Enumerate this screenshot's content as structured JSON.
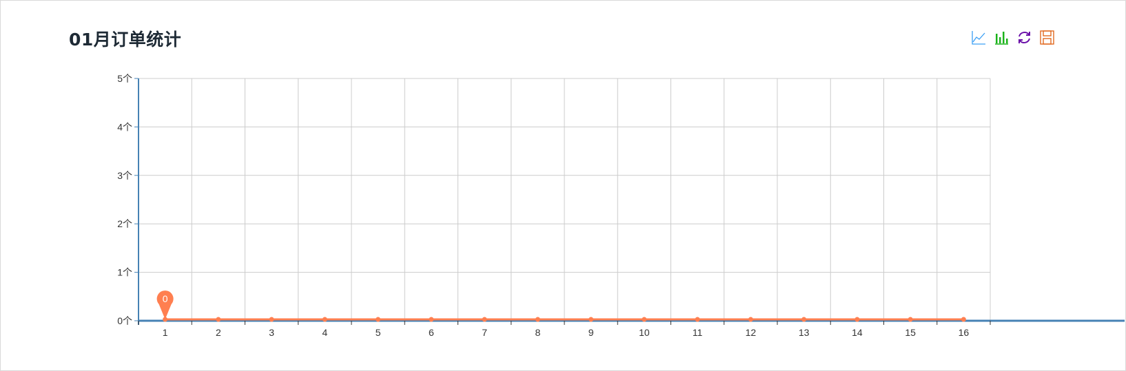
{
  "title": "01月订单统计",
  "toolbox": [
    {
      "name": "line-chart-icon",
      "color": "#3a9ff5"
    },
    {
      "name": "bar-chart-icon",
      "color": "#1bb31b"
    },
    {
      "name": "refresh-icon",
      "color": "#6a0fa8"
    },
    {
      "name": "save-icon",
      "color": "#e2691f"
    }
  ],
  "colors": {
    "line": "#ff7f50",
    "axis": "#4682b4",
    "grid": "#cccccc"
  },
  "chart_data": {
    "type": "line",
    "title": "01月订单统计",
    "categories": [
      "1",
      "2",
      "3",
      "4",
      "5",
      "6",
      "7",
      "8",
      "9",
      "10",
      "11",
      "12",
      "13",
      "14",
      "15",
      "16"
    ],
    "values": [
      0,
      0,
      0,
      0,
      0,
      0,
      0,
      0,
      0,
      0,
      0,
      0,
      0,
      0,
      0,
      0
    ],
    "ylim": [
      0,
      5
    ],
    "yticks": [
      "0个",
      "1个",
      "2个",
      "3个",
      "4个",
      "5个"
    ],
    "grid": true,
    "annotations": [
      {
        "category": "1",
        "value": 0,
        "label": "0",
        "type": "pin"
      }
    ],
    "xlabel": "",
    "ylabel": ""
  }
}
